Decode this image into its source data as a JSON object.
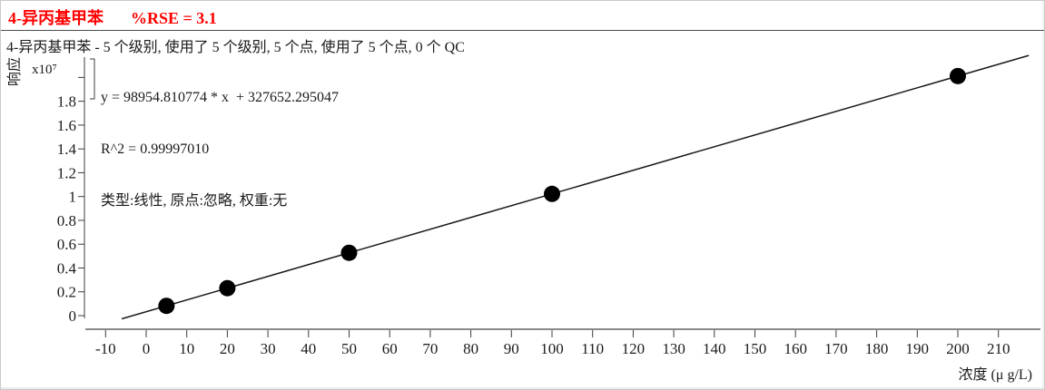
{
  "header": {
    "compound": "4-异丙基甲苯",
    "rse_label": "%RSE = 3.1",
    "title_color": "#ff0000"
  },
  "info_line": "4-异丙基甲苯 - 5 个级别, 使用了 5 个级别, 5 个点, 使用了 5 个点, 0 个 QC",
  "fit_info": {
    "equation": "y = 98954.810774 * x  + 327652.295047",
    "r_squared": "R^2 = 0.99997010",
    "type_line": "类型:线性, 原点:忽略, 权重:无"
  },
  "axes": {
    "y_label": "响应",
    "y_scale": "x10⁷",
    "x_label": "浓度 (μ g/L)"
  },
  "chart_data": {
    "type": "scatter",
    "title": "4-异丙基甲苯 %RSE = 3.1",
    "subtitle": "4-异丙基甲苯 - 5 个级别, 使用了 5 个级别, 5 个点, 使用了 5 个点, 0 个 QC",
    "xlabel": "浓度 (μ g/L)",
    "ylabel": "响应 x10⁷",
    "grid": false,
    "xlim": [
      -15,
      220
    ],
    "ylim_e7": [
      0,
      2.17
    ],
    "x_ticks": [
      -10,
      0,
      10,
      20,
      30,
      40,
      50,
      60,
      70,
      80,
      90,
      100,
      110,
      120,
      130,
      140,
      150,
      160,
      170,
      180,
      190,
      200,
      210
    ],
    "y_ticks": [
      {
        "v": 0.0,
        "label": "0"
      },
      {
        "v": 0.2,
        "label": "0.2"
      },
      {
        "v": 0.4,
        "label": "0.4"
      },
      {
        "v": 0.6,
        "label": "0.6"
      },
      {
        "v": 0.8,
        "label": "0.8"
      },
      {
        "v": 1.0,
        "label": "1"
      },
      {
        "v": 1.2,
        "label": "1.2"
      },
      {
        "v": 1.4,
        "label": "1.4"
      },
      {
        "v": 1.6,
        "label": "1.6"
      },
      {
        "v": 1.8,
        "label": "1.8"
      }
    ],
    "y_unlabeled_tick": 2.0,
    "points": [
      {
        "x": 5,
        "y_e7": 0.0822
      },
      {
        "x": 20,
        "y_e7": 0.2307
      },
      {
        "x": 50,
        "y_e7": 0.5275
      },
      {
        "x": 100,
        "y_e7": 1.0223
      },
      {
        "x": 200,
        "y_e7": 2.0119
      }
    ],
    "fit": {
      "slope": 98954.810774,
      "intercept": 327652.295047,
      "r2": 0.9999701,
      "line_x_range": [
        -6,
        217.5
      ]
    },
    "point_color": "#000000",
    "line_color": "#1a1a1a",
    "axis_color": "#8a8a8a",
    "tick_color": "#3d3d3d"
  }
}
